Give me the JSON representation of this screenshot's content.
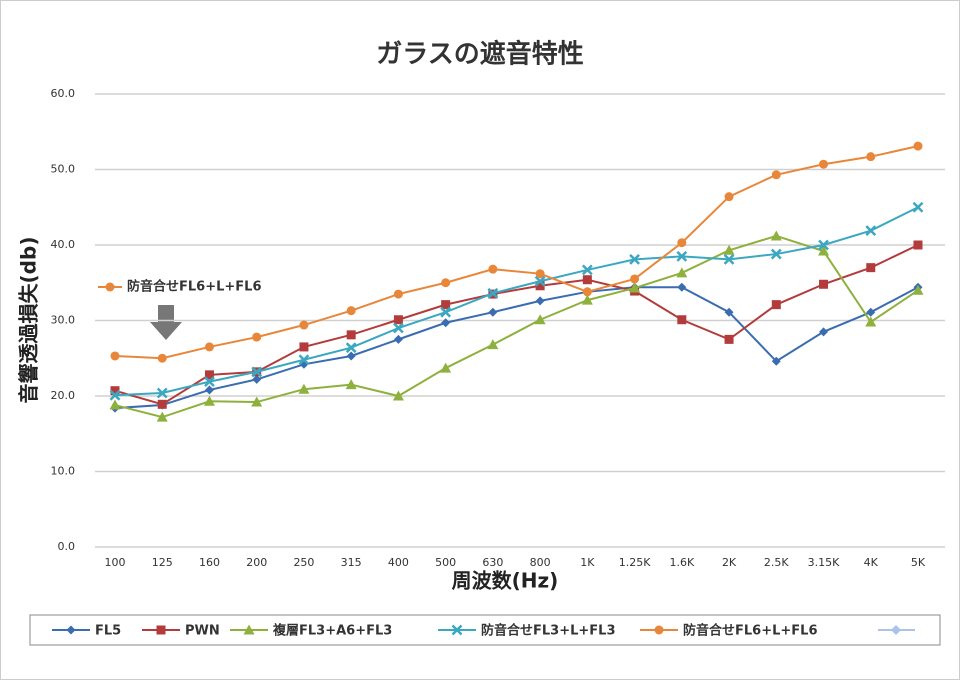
{
  "chart_data": {
    "type": "line",
    "title": "ガラスの遮音特性",
    "xlabel": "周波数(Hz)",
    "ylabel": "音響透過損失(db)",
    "annotation": "防音合せFL6+L+FL6",
    "categories": [
      "100",
      "125",
      "160",
      "200",
      "250",
      "315",
      "400",
      "500",
      "630",
      "800",
      "1K",
      "1.25K",
      "1.6K",
      "2K",
      "2.5K",
      "3.15K",
      "4K",
      "5K"
    ],
    "ylim": [
      0,
      60
    ],
    "yticks": [
      {
        "value": 0,
        "label": "0.0"
      },
      {
        "value": 10,
        "label": "10.0"
      },
      {
        "value": 20,
        "label": "20.0"
      },
      {
        "value": 30,
        "label": "30.0"
      },
      {
        "value": 40,
        "label": "40.0"
      },
      {
        "value": 50,
        "label": "50.0"
      },
      {
        "value": 60,
        "label": "60.0"
      }
    ],
    "grid": true,
    "series": [
      {
        "name": "FL5",
        "color": "#3a6cb0",
        "marker": "diamond",
        "values": [
          18.4,
          18.8,
          20.8,
          22.2,
          24.2,
          25.3,
          27.5,
          29.7,
          31.1,
          32.6,
          33.8,
          34.4,
          34.4,
          31.1,
          24.6,
          28.5,
          31.1,
          34.4
        ]
      },
      {
        "name": "PWN",
        "color": "#b33b3b",
        "marker": "square",
        "values": [
          20.7,
          18.9,
          22.8,
          23.2,
          26.5,
          28.1,
          30.1,
          32.1,
          33.5,
          34.6,
          35.4,
          33.9,
          30.1,
          27.5,
          32.1,
          34.8,
          37.0,
          40.0
        ]
      },
      {
        "name": "複層FL3+A6+FL3",
        "color": "#8db13c",
        "marker": "triangle",
        "values": [
          18.8,
          17.2,
          19.3,
          19.2,
          20.9,
          21.5,
          20.0,
          23.7,
          26.8,
          30.1,
          32.7,
          34.3,
          36.3,
          39.3,
          41.2,
          39.2,
          29.8,
          34.0
        ]
      },
      {
        "name": "防音合せFL3+L+FL3",
        "color": "#3ba7c1",
        "marker": "x",
        "values": [
          20.1,
          20.4,
          21.9,
          23.2,
          24.8,
          26.4,
          29.0,
          31.1,
          33.6,
          35.2,
          36.7,
          38.1,
          38.5,
          38.1,
          38.8,
          40.0,
          41.9,
          45.0
        ]
      },
      {
        "name": "防音合せFL6+L+FL6",
        "color": "#e8873a",
        "marker": "circle",
        "values": [
          25.3,
          25.0,
          26.5,
          27.8,
          29.4,
          31.3,
          33.5,
          35.0,
          36.8,
          36.2,
          33.8,
          35.5,
          40.3,
          46.4,
          49.3,
          50.7,
          51.7,
          53.1
        ]
      }
    ]
  }
}
